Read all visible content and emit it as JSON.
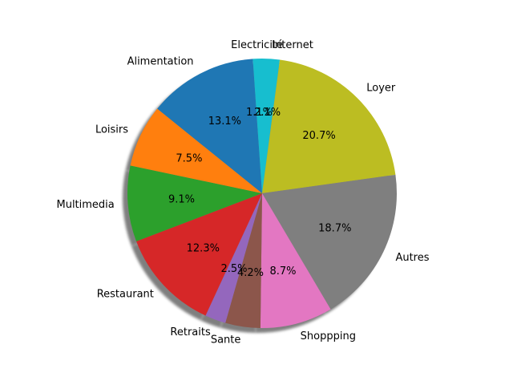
{
  "chart_data": {
    "type": "pie",
    "title": "",
    "shadow": true,
    "start_angle_deg": 90,
    "direction": "clockwise",
    "slices": [
      {
        "label": "Internet",
        "value": 2.1,
        "pct_text": "2.1%",
        "color": "#17becf"
      },
      {
        "label": "Loyer",
        "value": 20.7,
        "pct_text": "20.7%",
        "color": "#bcbd22"
      },
      {
        "label": "Autres",
        "value": 18.7,
        "pct_text": "18.7%",
        "color": "#7f7f7f"
      },
      {
        "label": "Shoppping",
        "value": 8.7,
        "pct_text": "8.7%",
        "color": "#e377c2"
      },
      {
        "label": "Sante",
        "value": 4.2,
        "pct_text": "4.2%",
        "color": "#8c564b"
      },
      {
        "label": "Retraits",
        "value": 2.5,
        "pct_text": "2.5%",
        "color": "#9467bd"
      },
      {
        "label": "Restaurant",
        "value": 12.3,
        "pct_text": "12.3%",
        "color": "#d62728"
      },
      {
        "label": "Multimedia",
        "value": 9.1,
        "pct_text": "9.1%",
        "color": "#2ca02c"
      },
      {
        "label": "Loisirs",
        "value": 7.5,
        "pct_text": "7.5%",
        "color": "#ff7f0e"
      },
      {
        "label": "Alimentation",
        "value": 13.1,
        "pct_text": "13.1%",
        "color": "#1f77b4"
      },
      {
        "label": "Electricité",
        "value": 1.1,
        "pct_text": "1.1%",
        "color": "#17becf"
      }
    ]
  }
}
